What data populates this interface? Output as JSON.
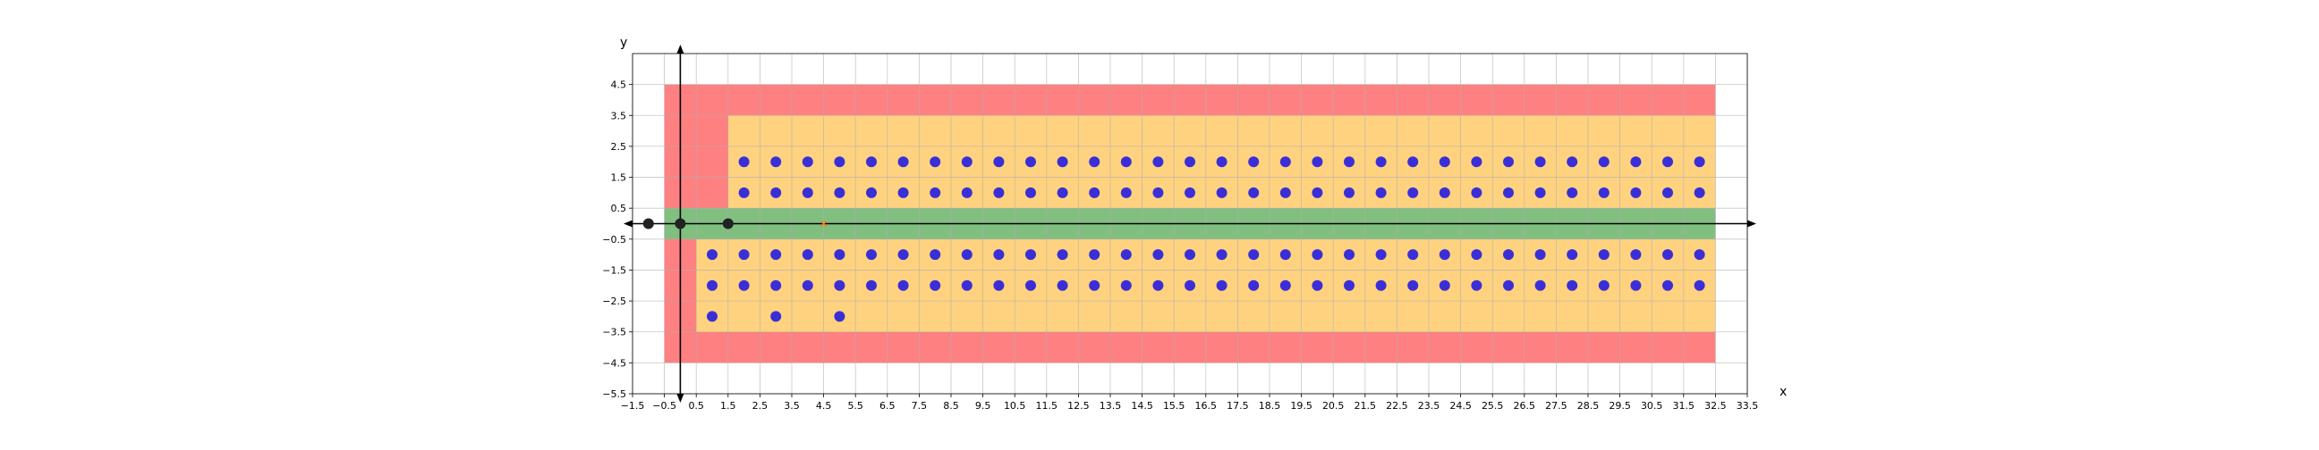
{
  "chart_data": {
    "type": "scatter",
    "xlabel": "x",
    "ylabel": "y",
    "xlim": [
      -1.5,
      33.5
    ],
    "ylim": [
      -5.5,
      5.5
    ],
    "x_ticks": [
      -1.5,
      -0.5,
      0.5,
      1.5,
      2.5,
      3.5,
      4.5,
      5.5,
      6.5,
      7.5,
      8.5,
      9.5,
      10.5,
      11.5,
      12.5,
      13.5,
      14.5,
      15.5,
      16.5,
      17.5,
      18.5,
      19.5,
      20.5,
      21.5,
      22.5,
      23.5,
      24.5,
      25.5,
      26.5,
      27.5,
      28.5,
      29.5,
      30.5,
      31.5,
      32.5,
      33.5
    ],
    "x_tick_labels": [
      "−1.5",
      "−0.5",
      "0.5",
      "1.5",
      "2.5",
      "3.5",
      "4.5",
      "5.5",
      "6.5",
      "7.5",
      "8.5",
      "9.5",
      "10.5",
      "11.5",
      "12.5",
      "13.5",
      "14.5",
      "15.5",
      "16.5",
      "17.5",
      "18.5",
      "19.5",
      "20.5",
      "21.5",
      "22.5",
      "23.5",
      "24.5",
      "25.5",
      "26.5",
      "27.5",
      "28.5",
      "29.5",
      "30.5",
      "31.5",
      "32.5",
      "33.5"
    ],
    "y_ticks": [
      4.5,
      3.5,
      2.5,
      1.5,
      0.5,
      -0.5,
      -1.5,
      -2.5,
      -3.5,
      -4.5,
      -5.5
    ],
    "y_tick_labels": [
      "4.5",
      "3.5",
      "2.5",
      "1.5",
      "0.5",
      "−0.5",
      "−1.5",
      "−2.5",
      "−3.5",
      "−4.5",
      "−5.5"
    ],
    "grid": true,
    "regions": [
      {
        "name": "red",
        "color": "#ff8080",
        "x": [
          -0.5,
          32.5
        ],
        "y": [
          -4.5,
          4.5
        ]
      },
      {
        "name": "orange",
        "color": "#ffd280",
        "x": [
          0.5,
          32.5
        ],
        "y": [
          -3.5,
          -0.5
        ]
      },
      {
        "name": "orange",
        "color": "#ffd280",
        "x": [
          1.5,
          32.5
        ],
        "y": [
          0.5,
          3.5
        ]
      },
      {
        "name": "green",
        "color": "#80bf80",
        "x": [
          -0.5,
          32.5
        ],
        "y": [
          -0.5,
          0.5
        ]
      }
    ],
    "series": [
      {
        "color": "#3a2fd6",
        "rows": [
          {
            "y": 2,
            "x_start": 2,
            "x_end": 32
          },
          {
            "y": 1,
            "x_start": 2,
            "x_end": 32
          },
          {
            "y": -1,
            "x_start": 1,
            "x_end": 32
          },
          {
            "y": -2,
            "x_start": 1,
            "x_end": 32
          }
        ],
        "extra_points": [
          [
            1,
            -3
          ],
          [
            3,
            -3
          ],
          [
            5,
            -3
          ]
        ]
      },
      {
        "color": "#222222",
        "points": [
          [
            -1,
            0
          ],
          [
            0,
            0
          ],
          [
            1.5,
            0
          ]
        ]
      },
      {
        "color": "#ff7f0e",
        "marker": "x",
        "points": [
          [
            4.5,
            0
          ]
        ]
      }
    ]
  }
}
